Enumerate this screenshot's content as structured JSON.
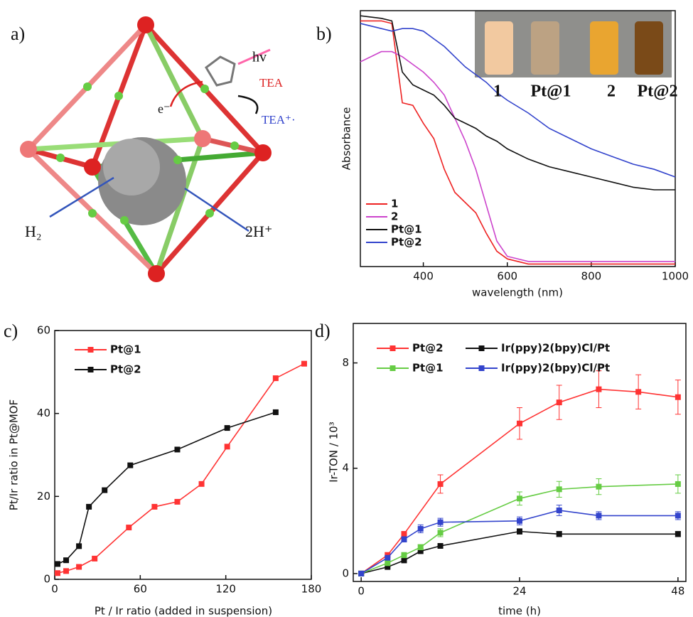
{
  "panel_a": {
    "label": "a)",
    "hv": "hv",
    "tea": "TEA",
    "tea_ox": "TEA⁺·",
    "electron": "e⁻",
    "h2": "H₂",
    "protons": "2H⁺"
  },
  "chart_data": [
    {
      "type": "line",
      "panel_label": "b)",
      "x_label": "wavelength (nm)",
      "y_label": "Absorbance",
      "xlim": [
        250,
        1000
      ],
      "xticks": [
        400,
        600,
        800,
        1000
      ],
      "ylim": [
        0,
        1
      ],
      "marker": "none",
      "x": [
        250,
        300,
        325,
        350,
        375,
        400,
        425,
        450,
        475,
        500,
        525,
        550,
        575,
        600,
        650,
        700,
        750,
        800,
        850,
        900,
        950,
        1000
      ],
      "series": [
        {
          "name": "1",
          "color": "#ee2222",
          "values": [
            0.96,
            0.96,
            0.95,
            0.64,
            0.63,
            0.56,
            0.5,
            0.38,
            0.29,
            0.25,
            0.21,
            0.13,
            0.06,
            0.03,
            0.01,
            0.01,
            0.01,
            0.01,
            0.01,
            0.01,
            0.01,
            0.01
          ]
        },
        {
          "name": "2",
          "color": "#cc44cc",
          "values": [
            0.8,
            0.84,
            0.84,
            0.82,
            0.79,
            0.76,
            0.72,
            0.67,
            0.58,
            0.49,
            0.38,
            0.24,
            0.1,
            0.04,
            0.02,
            0.02,
            0.02,
            0.02,
            0.02,
            0.02,
            0.02,
            0.02
          ]
        },
        {
          "name": "Pt@1",
          "color": "#111111",
          "values": [
            0.98,
            0.97,
            0.96,
            0.76,
            0.71,
            0.69,
            0.67,
            0.63,
            0.58,
            0.56,
            0.54,
            0.51,
            0.49,
            0.46,
            0.42,
            0.39,
            0.37,
            0.35,
            0.33,
            0.31,
            0.3,
            0.3
          ]
        },
        {
          "name": "Pt@2",
          "color": "#3344cc",
          "values": [
            0.95,
            0.93,
            0.92,
            0.93,
            0.93,
            0.92,
            0.89,
            0.86,
            0.82,
            0.78,
            0.75,
            0.72,
            0.68,
            0.65,
            0.6,
            0.54,
            0.5,
            0.46,
            0.43,
            0.4,
            0.38,
            0.35
          ]
        }
      ],
      "inset_labels": [
        {
          "text": "1",
          "color": "#ee2222"
        },
        {
          "text": "Pt@1",
          "color": "#111111"
        },
        {
          "text": "2",
          "color": "#cc44cc"
        },
        {
          "text": "Pt@2",
          "color": "#3355cc"
        }
      ]
    },
    {
      "type": "line",
      "panel_label": "c)",
      "x_label": "Pt / Ir ratio (added in suspension)",
      "y_label": "Pt/Ir ratio in Pt@MOF",
      "xlim": [
        0,
        180
      ],
      "xticks": [
        0,
        60,
        120,
        180
      ],
      "ylim": [
        0,
        60
      ],
      "yticks": [
        0,
        20,
        40,
        60
      ],
      "marker": "square",
      "series": [
        {
          "name": "Pt@1",
          "color": "#ff3333",
          "x": [
            2,
            8,
            17,
            28,
            52,
            70,
            86,
            103,
            121,
            155,
            175
          ],
          "values": [
            1.5,
            2,
            3,
            5,
            12.5,
            17.5,
            18.7,
            23,
            32,
            48.5,
            52
          ]
        },
        {
          "name": "Pt@2",
          "color": "#111111",
          "x": [
            2,
            8,
            17,
            24,
            35,
            53,
            86,
            121,
            155
          ],
          "values": [
            3.7,
            4.6,
            8,
            17.5,
            21.5,
            27.5,
            31.3,
            36.5,
            40.3
          ]
        }
      ]
    },
    {
      "type": "line",
      "panel_label": "d)",
      "x_label": "time (h)",
      "y_label": "Ir-TON / 10³",
      "xlim": [
        -1.2,
        49.2
      ],
      "xticks": [
        0,
        24,
        48
      ],
      "ylim": [
        -0.3,
        9.5
      ],
      "yticks": [
        0,
        4,
        8
      ],
      "marker": "square",
      "series": [
        {
          "name": "Pt@2",
          "color": "#ff3333",
          "x": [
            0,
            4,
            6.5,
            12,
            24,
            30,
            36,
            42,
            48
          ],
          "values": [
            0,
            0.7,
            1.5,
            3.4,
            5.7,
            6.5,
            7.0,
            6.9,
            6.7
          ],
          "errors": [
            0,
            0.1,
            0.1,
            0.35,
            0.6,
            0.65,
            0.7,
            0.65,
            0.65
          ]
        },
        {
          "name": "Ir(ppy)2(bpy)Cl/Pt",
          "color": "#111111",
          "x": [
            0,
            4,
            6.5,
            9,
            12,
            24,
            30,
            48
          ],
          "values": [
            0,
            0.25,
            0.5,
            0.85,
            1.05,
            1.6,
            1.5,
            1.5
          ],
          "errors": [
            0,
            0,
            0,
            0,
            0,
            0.1,
            0.1,
            0.1
          ]
        },
        {
          "name": "Pt@1",
          "color": "#66cc44",
          "x": [
            0,
            4,
            6.5,
            9,
            12,
            24,
            30,
            36,
            48
          ],
          "values": [
            0,
            0.4,
            0.7,
            1.0,
            1.55,
            2.85,
            3.2,
            3.3,
            3.4
          ],
          "errors": [
            0,
            0.1,
            0.1,
            0.1,
            0.15,
            0.25,
            0.3,
            0.3,
            0.35
          ]
        },
        {
          "name": "Ir(ppy)2(bpy)Cl/Pt",
          "color": "#3344cc",
          "x": [
            0,
            4,
            6.5,
            9,
            12,
            24,
            30,
            36,
            48
          ],
          "values": [
            0,
            0.6,
            1.3,
            1.7,
            1.95,
            2.0,
            2.4,
            2.2,
            2.2
          ],
          "errors": [
            0,
            0.05,
            0.1,
            0.15,
            0.15,
            0.15,
            0.2,
            0.15,
            0.15
          ]
        }
      ]
    }
  ]
}
